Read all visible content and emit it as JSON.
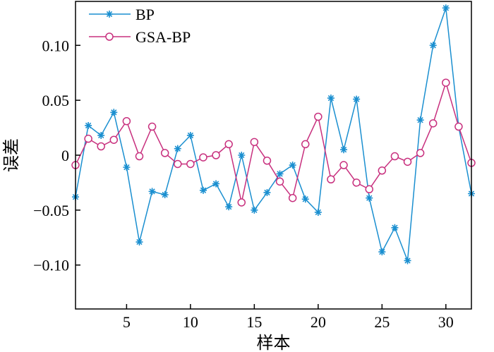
{
  "chart_data": {
    "type": "line",
    "title": "",
    "xlabel": "样本",
    "ylabel": "误差",
    "xlim": [
      1,
      32
    ],
    "ylim": [
      -0.14,
      0.14
    ],
    "xticks": [
      5,
      10,
      15,
      20,
      25,
      30
    ],
    "yticks": [
      -0.1,
      -0.05,
      0,
      0.05,
      0.1
    ],
    "xtick_labels": [
      "5",
      "10",
      "15",
      "20",
      "25",
      "30"
    ],
    "ytick_labels": [
      "−0.10",
      "−0.05",
      "0",
      "0.05",
      "0.10"
    ],
    "grid": false,
    "legend_position": "top-left",
    "x": [
      1,
      2,
      3,
      4,
      5,
      6,
      7,
      8,
      9,
      10,
      11,
      12,
      13,
      14,
      15,
      16,
      17,
      18,
      19,
      20,
      21,
      22,
      23,
      24,
      25,
      26,
      27,
      28,
      29,
      30,
      31,
      32
    ],
    "series": [
      {
        "name": "BP",
        "color": "#1a8fd0",
        "marker": "asterisk",
        "values": [
          -0.038,
          0.027,
          0.018,
          0.039,
          -0.011,
          -0.079,
          -0.033,
          -0.036,
          0.006,
          0.018,
          -0.032,
          -0.026,
          -0.047,
          0.0,
          -0.05,
          -0.034,
          -0.017,
          -0.009,
          -0.04,
          -0.052,
          0.052,
          0.005,
          0.051,
          -0.039,
          -0.088,
          -0.066,
          -0.096,
          0.032,
          0.1,
          0.134,
          0.026,
          -0.035
        ]
      },
      {
        "name": "GSA-BP",
        "color": "#c8307e",
        "marker": "circle",
        "values": [
          -0.009,
          0.015,
          0.008,
          0.014,
          0.031,
          -0.001,
          0.026,
          0.002,
          -0.008,
          -0.008,
          -0.002,
          0.0,
          0.01,
          -0.043,
          0.012,
          -0.005,
          -0.024,
          -0.039,
          0.01,
          0.035,
          -0.022,
          -0.009,
          -0.025,
          -0.031,
          -0.014,
          -0.001,
          -0.006,
          0.002,
          0.029,
          0.066,
          0.026,
          -0.007
        ]
      }
    ]
  }
}
